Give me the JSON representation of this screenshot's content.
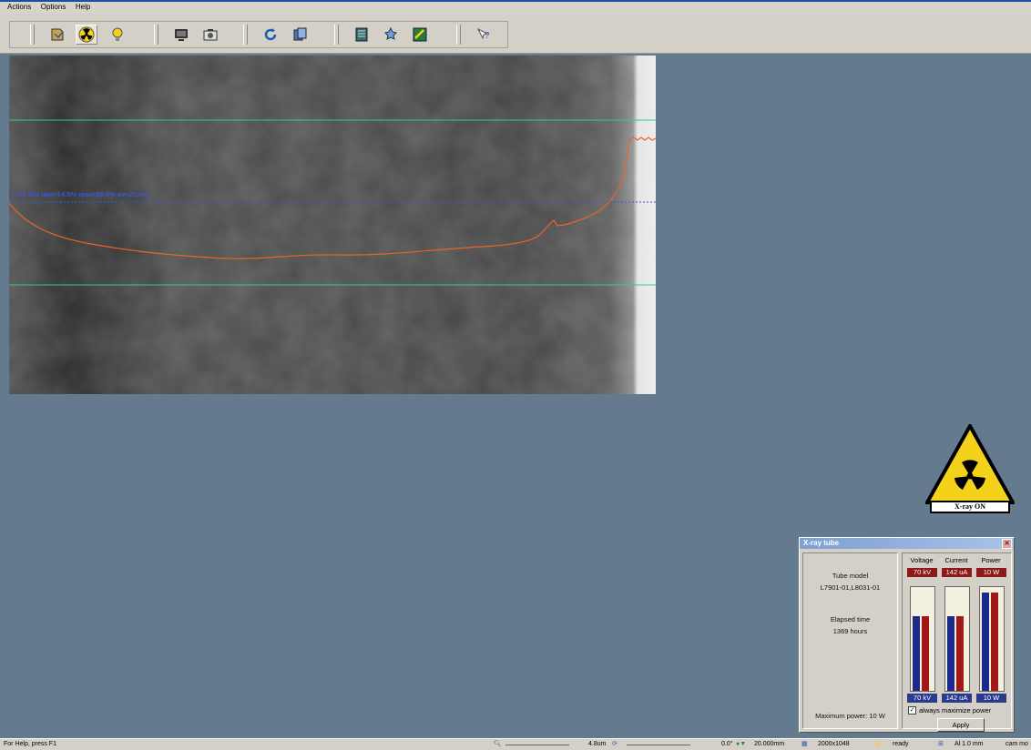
{
  "menu": {
    "items": [
      "Actions",
      "Options",
      "Help"
    ]
  },
  "toolbar": {
    "buttons": [
      {
        "icon": "open-file-icon"
      },
      {
        "icon": "radiation-icon"
      },
      {
        "icon": "lightbulb-icon"
      },
      {
        "icon": "monitor-icon"
      },
      {
        "icon": "camera-icon"
      },
      {
        "icon": "refresh-icon"
      },
      {
        "icon": "stack-icon"
      },
      {
        "icon": "document-icon"
      },
      {
        "icon": "tools-icon"
      },
      {
        "icon": "calibrate-icon"
      },
      {
        "icon": "help-icon"
      }
    ]
  },
  "viewer": {
    "profile_label": "Line 993 min=14.5% max=89.8% av=27.4%",
    "profile_color": "#e8642a",
    "guide_color": "#3fc48a",
    "line_color": "#3b56d8"
  },
  "warning": {
    "label": "X-ray ON"
  },
  "xray_panel": {
    "title": "X-ray tube",
    "tube_model_label": "Tube model",
    "tube_model": "L7901-01,L8031-01",
    "elapsed_label": "Elapsed time",
    "elapsed_value": "1369 hours",
    "max_power_label": "Maximum power:",
    "max_power_value": "10 W",
    "columns": [
      "Voltage",
      "Current",
      "Power"
    ],
    "set_values": [
      "70 kV",
      "142 uA",
      "10 W"
    ],
    "actual_values": [
      "70 kV",
      "142 uA",
      "10 W"
    ],
    "checkbox_label": "always maximize power",
    "checkbox_checked": true,
    "apply_label": "Apply",
    "levels": {
      "voltage": 0.72,
      "current": 0.72,
      "power": 0.95
    }
  },
  "status": {
    "help": "For Help, press F1",
    "zoom": "4.8um",
    "rotation": "0.0°",
    "position": "20.000mm",
    "resolution": "2000x1048",
    "state": "ready",
    "filter": "Al 1.0 mm",
    "camera": "cam mo"
  }
}
